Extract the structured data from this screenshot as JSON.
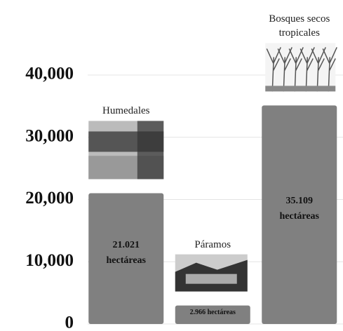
{
  "chart_data": {
    "type": "bar",
    "categories": [
      "Humedales",
      "Páramos",
      "Bosques secos tropicales"
    ],
    "values": [
      21021,
      2966,
      35109
    ],
    "value_labels": [
      "21.021 hectáreas",
      "2.966 hectáreas",
      "35.109 hectáreas"
    ],
    "color": "#808080",
    "ylim": [
      0,
      40000
    ],
    "yticks": [
      0,
      {
        "value": 10000,
        "label": "10,000"
      },
      {
        "value": 20000,
        "label": "20,000"
      },
      {
        "value": 30000,
        "label": "30,000"
      },
      {
        "value": 40000,
        "label": "40,000"
      }
    ],
    "grid": true
  }
}
